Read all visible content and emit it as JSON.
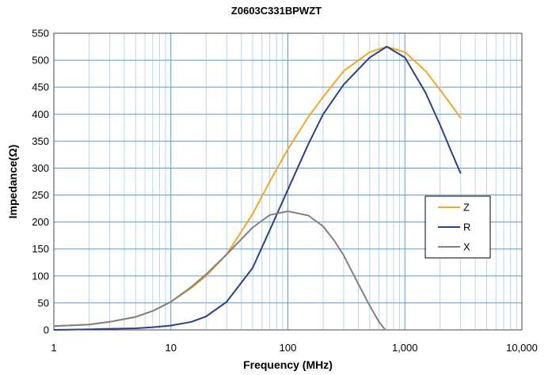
{
  "chart_data": {
    "type": "line",
    "title": "Z0603C331BPWZT",
    "xlabel": "Frequency (MHz)",
    "ylabel": "Impedance(Ω)",
    "xscale": "log",
    "xlim": [
      1,
      10000
    ],
    "ylim": [
      0,
      550
    ],
    "xticks": [
      1,
      10,
      100,
      1000,
      10000
    ],
    "xtick_labels": [
      "1",
      "10",
      "100",
      "1,000",
      "10,000"
    ],
    "yticks": [
      0,
      50,
      100,
      150,
      200,
      250,
      300,
      350,
      400,
      450,
      500,
      550
    ],
    "ytick_labels": [
      "0",
      "50",
      "100",
      "150",
      "200",
      "250",
      "300",
      "350",
      "400",
      "450",
      "500",
      "550"
    ],
    "grid": true,
    "legend_position": "right",
    "series": [
      {
        "name": "Z",
        "color": "#F5A623",
        "x": [
          1,
          2,
          3,
          5,
          7,
          10,
          15,
          20,
          30,
          50,
          70,
          100,
          150,
          200,
          300,
          500,
          700,
          1000,
          1500,
          2000,
          3000
        ],
        "y": [
          7,
          10,
          15,
          24,
          35,
          52,
          78,
          100,
          140,
          215,
          275,
          335,
          395,
          432,
          480,
          515,
          525,
          515,
          480,
          445,
          393
        ]
      },
      {
        "name": "R",
        "color": "#2B3F8F",
        "x": [
          1,
          2,
          3,
          5,
          7,
          10,
          15,
          20,
          30,
          50,
          70,
          100,
          150,
          200,
          300,
          500,
          700,
          1000,
          1500,
          2000,
          2500,
          3000
        ],
        "y": [
          0,
          1,
          2,
          3,
          5,
          8,
          15,
          25,
          52,
          115,
          185,
          260,
          345,
          400,
          455,
          505,
          525,
          505,
          440,
          380,
          330,
          290
        ]
      },
      {
        "name": "X",
        "color": "#808080",
        "x": [
          1,
          2,
          3,
          5,
          7,
          10,
          15,
          20,
          30,
          50,
          70,
          100,
          150,
          200,
          250,
          300,
          400,
          500,
          600,
          680
        ],
        "y": [
          7,
          10,
          15,
          24,
          35,
          52,
          80,
          103,
          140,
          190,
          213,
          220,
          212,
          192,
          165,
          138,
          85,
          45,
          15,
          0
        ]
      }
    ]
  }
}
